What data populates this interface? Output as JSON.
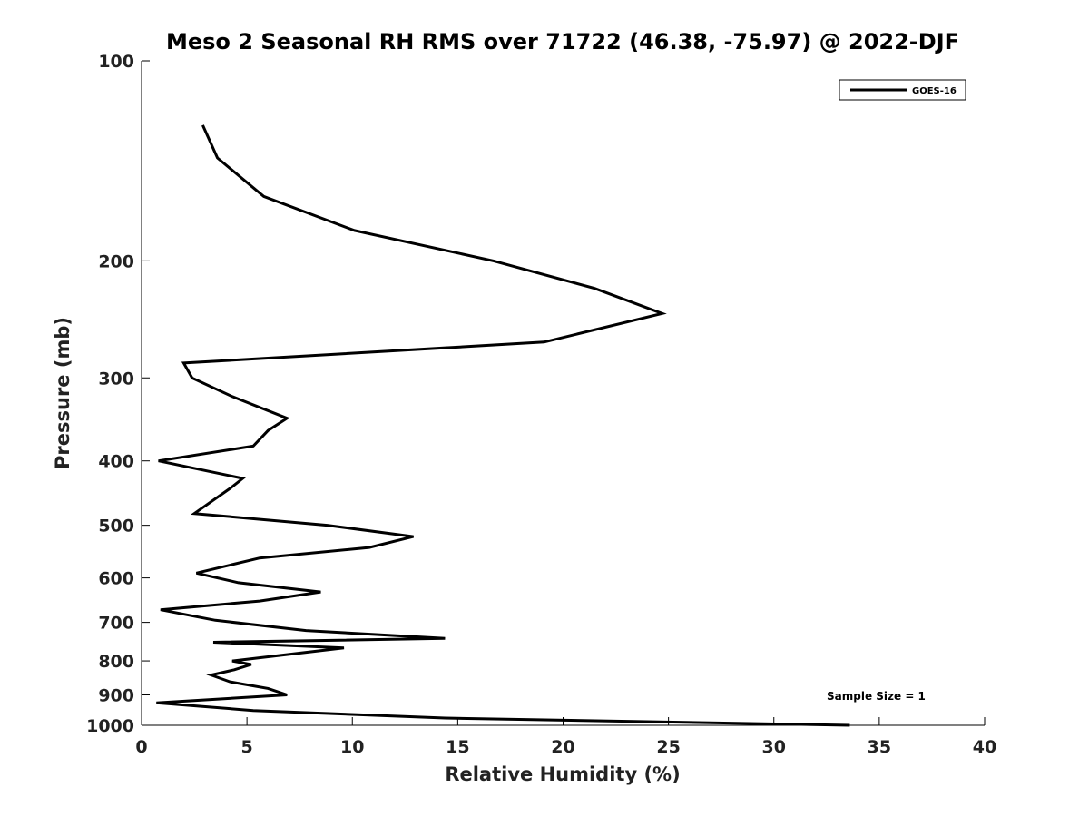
{
  "chart_data": {
    "type": "line",
    "title": "Meso 2 Seasonal RH RMS over 71722 (46.38, -75.97) @ 2022-DJF",
    "xlabel": "Relative Humidity (%)",
    "ylabel": "Pressure (mb)",
    "xlim": [
      0,
      40
    ],
    "ylim": [
      100,
      1000
    ],
    "y_scale": "log",
    "y_inverted": true,
    "x_ticks": [
      0,
      5,
      10,
      15,
      20,
      25,
      30,
      35,
      40
    ],
    "y_ticks": [
      100,
      200,
      300,
      400,
      500,
      600,
      700,
      800,
      900,
      1000
    ],
    "grid": false,
    "legend_position": "top-right",
    "series": [
      {
        "name": "GOES-16",
        "color": "#000000",
        "x": [
          2.9,
          3.6,
          5.8,
          10.1,
          16.7,
          21.5,
          24.7,
          19.1,
          2.0,
          2.4,
          4.3,
          6.9,
          6.0,
          5.3,
          0.8,
          4.8,
          4.2,
          2.5,
          8.8,
          12.9,
          10.8,
          5.6,
          2.6,
          4.6,
          8.5,
          5.6,
          0.9,
          3.5,
          7.8,
          14.4,
          3.4,
          9.6,
          7.3,
          4.3,
          5.2,
          4.4,
          3.3,
          4.2,
          6.0,
          6.9,
          0.7,
          5.3,
          14.4,
          33.6
        ],
        "y": [
          125,
          140,
          160,
          180,
          200,
          220,
          240,
          265,
          285,
          300,
          320,
          345,
          360,
          380,
          400,
          425,
          440,
          480,
          500,
          520,
          540,
          560,
          590,
          610,
          630,
          650,
          670,
          695,
          720,
          740,
          750,
          765,
          780,
          800,
          810,
          825,
          840,
          860,
          880,
          900,
          925,
          950,
          975,
          1000
        ]
      }
    ],
    "annotations": [
      "Sample Size = 1"
    ]
  }
}
